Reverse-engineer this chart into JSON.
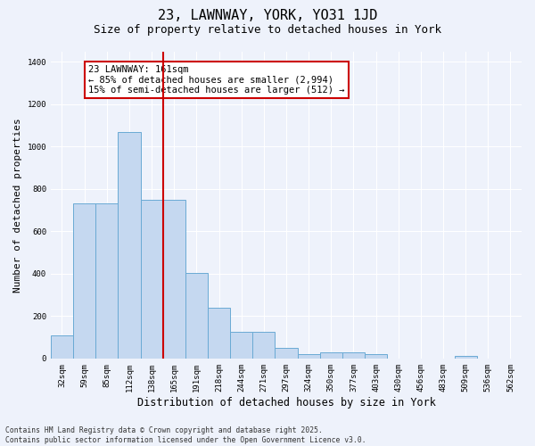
{
  "title": "23, LAWNWAY, YORK, YO31 1JD",
  "subtitle": "Size of property relative to detached houses in York",
  "xlabel": "Distribution of detached houses by size in York",
  "ylabel": "Number of detached properties",
  "categories": [
    "32sqm",
    "59sqm",
    "85sqm",
    "112sqm",
    "138sqm",
    "165sqm",
    "191sqm",
    "218sqm",
    "244sqm",
    "271sqm",
    "297sqm",
    "324sqm",
    "350sqm",
    "377sqm",
    "403sqm",
    "430sqm",
    "456sqm",
    "483sqm",
    "509sqm",
    "536sqm",
    "562sqm"
  ],
  "values": [
    110,
    730,
    730,
    1070,
    750,
    750,
    405,
    240,
    125,
    125,
    50,
    20,
    30,
    30,
    20,
    0,
    0,
    0,
    10,
    0,
    0
  ],
  "bar_color": "#c5d8f0",
  "bar_edge_color": "#6aaad4",
  "vline_color": "#cc0000",
  "vline_x_index": 5,
  "annotation_text": "23 LAWNWAY: 161sqm\n← 85% of detached houses are smaller (2,994)\n15% of semi-detached houses are larger (512) →",
  "annotation_box_color": "#cc0000",
  "annotation_bg": "#ffffff",
  "ylim": [
    0,
    1450
  ],
  "yticks": [
    0,
    200,
    400,
    600,
    800,
    1000,
    1200,
    1400
  ],
  "footer_text": "Contains HM Land Registry data © Crown copyright and database right 2025.\nContains public sector information licensed under the Open Government Licence v3.0.",
  "bg_color": "#eef2fb",
  "grid_color": "#ffffff",
  "title_fontsize": 11,
  "subtitle_fontsize": 9,
  "tick_fontsize": 6.5,
  "ylabel_fontsize": 8,
  "xlabel_fontsize": 8.5,
  "annotation_fontsize": 7.5
}
